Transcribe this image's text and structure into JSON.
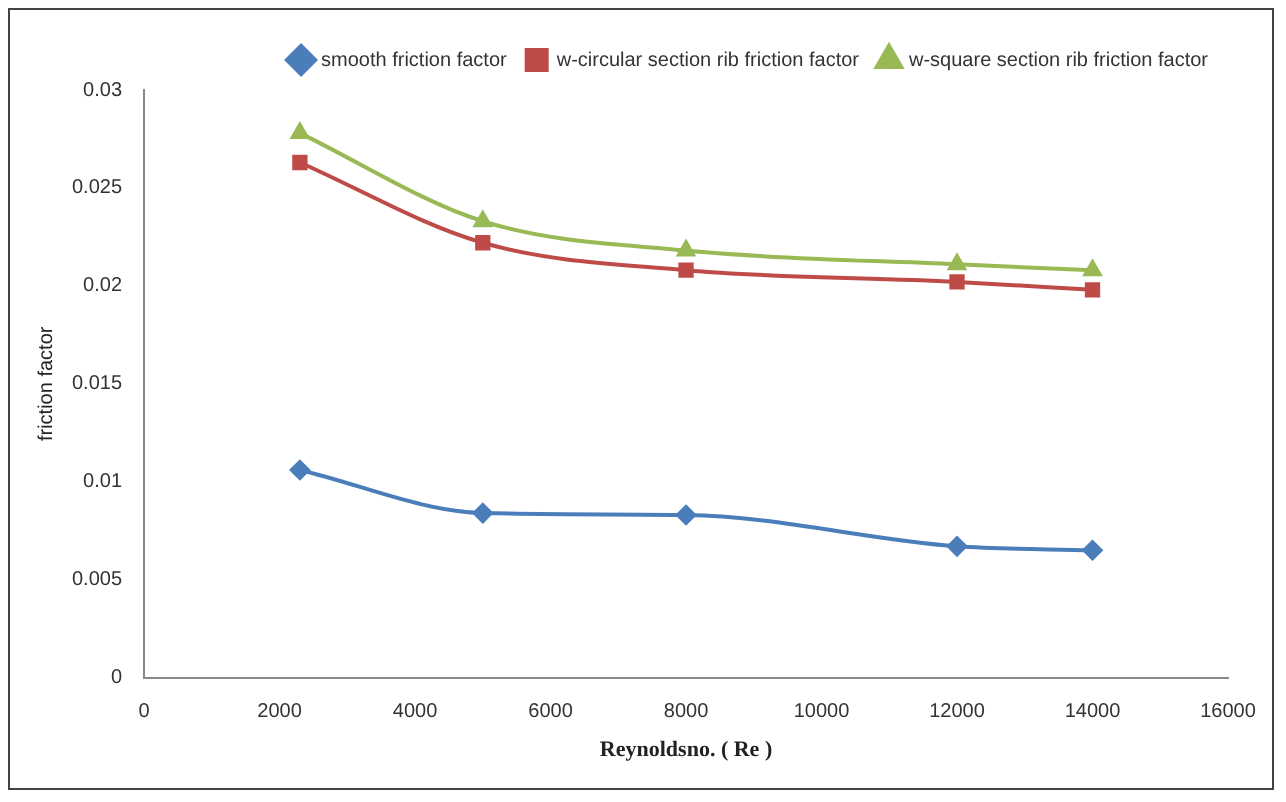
{
  "chart_data": {
    "type": "line",
    "xlabel": "Reynoldsno. ( Re )",
    "ylabel": "friction factor",
    "x": [
      2300,
      5000,
      8000,
      12000,
      14000
    ],
    "series": [
      {
        "name": "smooth friction factor",
        "color": "#4a7ebb",
        "marker": "diamond",
        "values": [
          0.0106,
          0.0084,
          0.0083,
          0.0067,
          0.0065
        ]
      },
      {
        "name": "w-circular section rib friction factor",
        "color": "#be4b48",
        "marker": "square",
        "values": [
          0.0263,
          0.0222,
          0.0208,
          0.0202,
          0.0198
        ]
      },
      {
        "name": "w-square section rib friction factor",
        "color": "#98b954",
        "marker": "triangle",
        "values": [
          0.0278,
          0.0233,
          0.0218,
          0.0211,
          0.0208
        ]
      }
    ],
    "xlim": [
      0,
      16000
    ],
    "xticks": [
      0,
      2000,
      4000,
      6000,
      8000,
      10000,
      12000,
      14000,
      16000
    ],
    "ylim": [
      0,
      0.03
    ],
    "yticks": [
      0,
      0.005,
      0.01,
      0.015,
      0.02,
      0.025,
      0.03
    ],
    "grid": false,
    "legend": "top right"
  }
}
